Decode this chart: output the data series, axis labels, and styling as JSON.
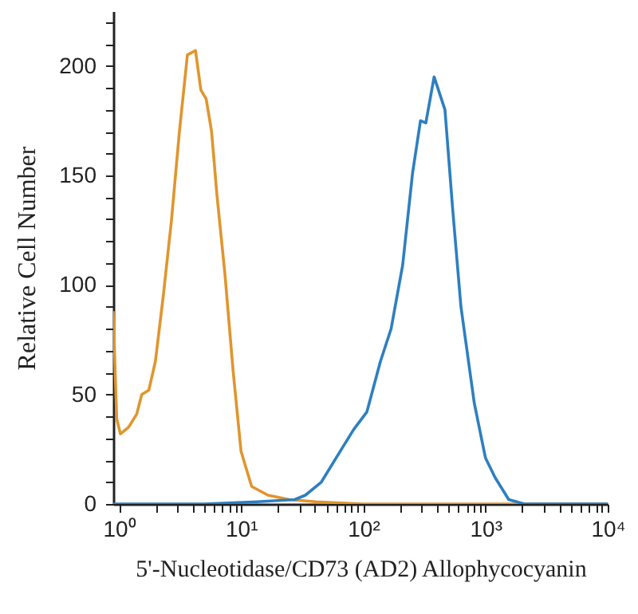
{
  "chart_data": {
    "type": "line",
    "xlabel": "5'-Nucleotidase/CD73 (AD2) Allophycocyanin",
    "ylabel": "Relative Cell Number",
    "log": "x",
    "grid": false,
    "xlim": [
      0.9,
      10000
    ],
    "ylim": [
      0,
      225
    ],
    "xticks": [
      {
        "value": 1,
        "label": "10⁰"
      },
      {
        "value": 2,
        "label": null
      },
      {
        "value": 3,
        "label": null
      },
      {
        "value": 4,
        "label": null
      },
      {
        "value": 5,
        "label": null
      },
      {
        "value": 6,
        "label": null
      },
      {
        "value": 7,
        "label": null
      },
      {
        "value": 8,
        "label": null
      },
      {
        "value": 9,
        "label": null
      },
      {
        "value": 10,
        "label": "10¹"
      },
      {
        "value": 20,
        "label": null
      },
      {
        "value": 30,
        "label": null
      },
      {
        "value": 40,
        "label": null
      },
      {
        "value": 50,
        "label": null
      },
      {
        "value": 60,
        "label": null
      },
      {
        "value": 70,
        "label": null
      },
      {
        "value": 80,
        "label": null
      },
      {
        "value": 90,
        "label": null
      },
      {
        "value": 100,
        "label": "10²"
      },
      {
        "value": 200,
        "label": null
      },
      {
        "value": 300,
        "label": null
      },
      {
        "value": 400,
        "label": null
      },
      {
        "value": 500,
        "label": null
      },
      {
        "value": 600,
        "label": null
      },
      {
        "value": 700,
        "label": null
      },
      {
        "value": 800,
        "label": null
      },
      {
        "value": 900,
        "label": null
      },
      {
        "value": 1000,
        "label": "10³"
      },
      {
        "value": 2000,
        "label": null
      },
      {
        "value": 3000,
        "label": null
      },
      {
        "value": 4000,
        "label": null
      },
      {
        "value": 5000,
        "label": null
      },
      {
        "value": 6000,
        "label": null
      },
      {
        "value": 7000,
        "label": null
      },
      {
        "value": 8000,
        "label": null
      },
      {
        "value": 9000,
        "label": null
      },
      {
        "value": 10000,
        "label": "10⁴"
      }
    ],
    "yticks": [
      0,
      {
        "value": 10,
        "label": null
      },
      {
        "value": 20,
        "label": null
      },
      {
        "value": 30,
        "label": null
      },
      {
        "value": 40,
        "label": null
      },
      50,
      {
        "value": 60,
        "label": null
      },
      {
        "value": 70,
        "label": null
      },
      {
        "value": 80,
        "label": null
      },
      {
        "value": 90,
        "label": null
      },
      100,
      {
        "value": 110,
        "label": null
      },
      {
        "value": 120,
        "label": null
      },
      {
        "value": 130,
        "label": null
      },
      {
        "value": 140,
        "label": null
      },
      150,
      {
        "value": 160,
        "label": null
      },
      {
        "value": 170,
        "label": null
      },
      {
        "value": 180,
        "label": null
      },
      {
        "value": 190,
        "label": null
      },
      200,
      {
        "value": 210,
        "label": null
      },
      {
        "value": 220,
        "label": null
      }
    ],
    "marker": "none",
    "line_style": "solid",
    "series": [
      {
        "color": "#e0952e",
        "x": [
          0.9,
          0.96,
          1.03,
          1.2,
          1.4,
          1.54,
          1.76,
          1.99,
          2.31,
          2.69,
          3.13,
          3.64,
          4.24,
          4.69,
          5.18,
          5.74,
          6.35,
          7.38,
          8.6,
          10,
          12.2,
          16.6,
          24.8,
          41,
          100,
          1000,
          10000
        ],
        "values": [
          88,
          39,
          32,
          35,
          41,
          50,
          52,
          65,
          95,
          129,
          170,
          205,
          207,
          189,
          185,
          170,
          141,
          105,
          61,
          24,
          8,
          4,
          2,
          1,
          0,
          0,
          0
        ]
      },
      {
        "color": "#2d7fc0",
        "x": [
          0.9,
          5,
          13.5,
          27.5,
          33.6,
          45.4,
          68,
          83.5,
          107,
          138,
          169,
          210,
          253,
          294,
          325,
          380,
          466,
          540,
          630,
          810,
          1000,
          1200,
          1550,
          2080,
          5000,
          10000
        ],
        "values": [
          0,
          0,
          1,
          2,
          4,
          10,
          26,
          34,
          42,
          65,
          80,
          109,
          151,
          175,
          174,
          195,
          180,
          134,
          90,
          46,
          21,
          12,
          2,
          0,
          0,
          0
        ]
      }
    ]
  }
}
